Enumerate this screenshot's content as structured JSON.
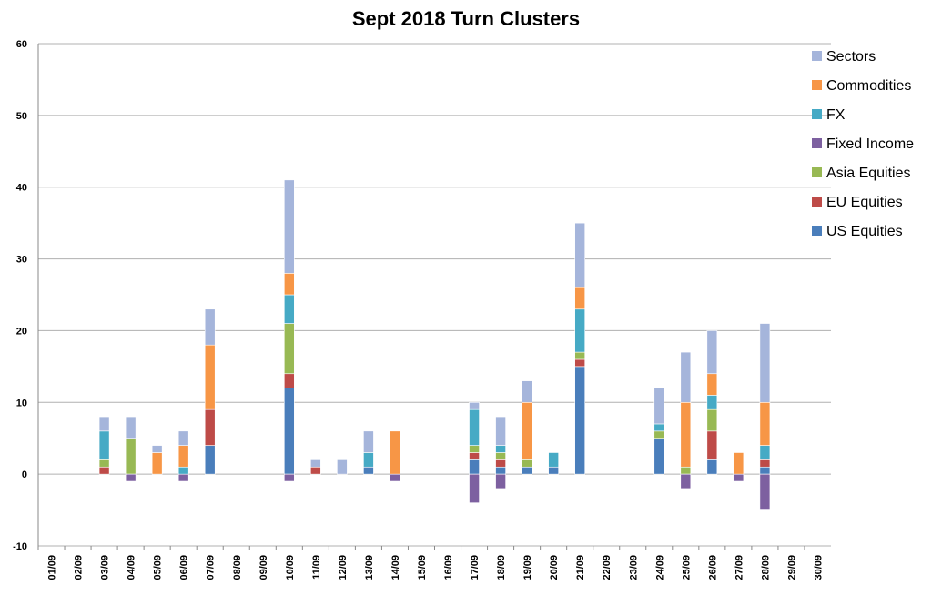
{
  "chart_data": {
    "type": "bar",
    "stacked": true,
    "title": "Sept 2018 Turn Clusters",
    "xlabel": "",
    "ylabel": "",
    "ylim": [
      -10,
      60
    ],
    "yticks": [
      -10,
      0,
      10,
      20,
      30,
      40,
      50,
      60
    ],
    "grid": true,
    "legend_position": "right",
    "categories": [
      "01/09",
      "02/09",
      "03/09",
      "04/09",
      "05/09",
      "06/09",
      "07/09",
      "08/09",
      "09/09",
      "10/09",
      "11/09",
      "12/09",
      "13/09",
      "14/09",
      "15/09",
      "16/09",
      "17/09",
      "18/09",
      "19/09",
      "20/09",
      "21/09",
      "22/09",
      "23/09",
      "24/09",
      "25/09",
      "26/09",
      "27/09",
      "28/09",
      "29/09",
      "30/09"
    ],
    "series": [
      {
        "name": "US Equities",
        "color": "#4a7ebb",
        "values": [
          0,
          0,
          0,
          0,
          0,
          0,
          4,
          0,
          0,
          12,
          0,
          0,
          1,
          0,
          0,
          0,
          2,
          1,
          1,
          1,
          15,
          0,
          0,
          5,
          0,
          2,
          0,
          1,
          0,
          0
        ]
      },
      {
        "name": "EU Equities",
        "color": "#be4b48",
        "values": [
          0,
          0,
          1,
          0,
          0,
          0,
          5,
          0,
          0,
          2,
          1,
          0,
          0,
          0,
          0,
          0,
          1,
          1,
          0,
          0,
          1,
          0,
          0,
          0,
          0,
          4,
          0,
          1,
          0,
          0
        ]
      },
      {
        "name": "Asia Equities",
        "color": "#98b954",
        "values": [
          0,
          0,
          1,
          5,
          0,
          0,
          0,
          0,
          0,
          7,
          0,
          0,
          0,
          0,
          0,
          0,
          1,
          1,
          1,
          0,
          1,
          0,
          0,
          1,
          1,
          3,
          0,
          0,
          0,
          0
        ]
      },
      {
        "name": "Fixed Income",
        "color": "#7d60a0",
        "values": [
          0,
          0,
          0,
          -1,
          0,
          -1,
          0,
          0,
          0,
          -1,
          0,
          0,
          0,
          -1,
          0,
          0,
          -4,
          -2,
          0,
          0,
          0,
          0,
          0,
          0,
          -2,
          0,
          -1,
          -5,
          0,
          0
        ]
      },
      {
        "name": "FX",
        "color": "#46aac5",
        "values": [
          0,
          0,
          4,
          0,
          0,
          1,
          0,
          0,
          0,
          4,
          0,
          0,
          2,
          0,
          0,
          0,
          5,
          1,
          0,
          2,
          6,
          0,
          0,
          1,
          0,
          2,
          0,
          2,
          0,
          0
        ]
      },
      {
        "name": "Commodities",
        "color": "#f79646",
        "values": [
          0,
          0,
          0,
          0,
          3,
          3,
          9,
          0,
          0,
          3,
          0,
          0,
          0,
          6,
          0,
          0,
          0,
          0,
          8,
          0,
          3,
          0,
          0,
          0,
          9,
          3,
          3,
          6,
          0,
          0
        ]
      },
      {
        "name": "Sectors",
        "color": "#a5b5db",
        "values": [
          0,
          0,
          2,
          3,
          1,
          2,
          5,
          0,
          0,
          13,
          1,
          2,
          3,
          0,
          0,
          0,
          1,
          4,
          3,
          0,
          9,
          0,
          0,
          5,
          7,
          6,
          0,
          11,
          0,
          0
        ]
      }
    ],
    "legend": [
      "Sectors",
      "Commodities",
      "FX",
      "Fixed Income",
      "Asia Equities",
      "EU Equities",
      "US Equities"
    ]
  }
}
